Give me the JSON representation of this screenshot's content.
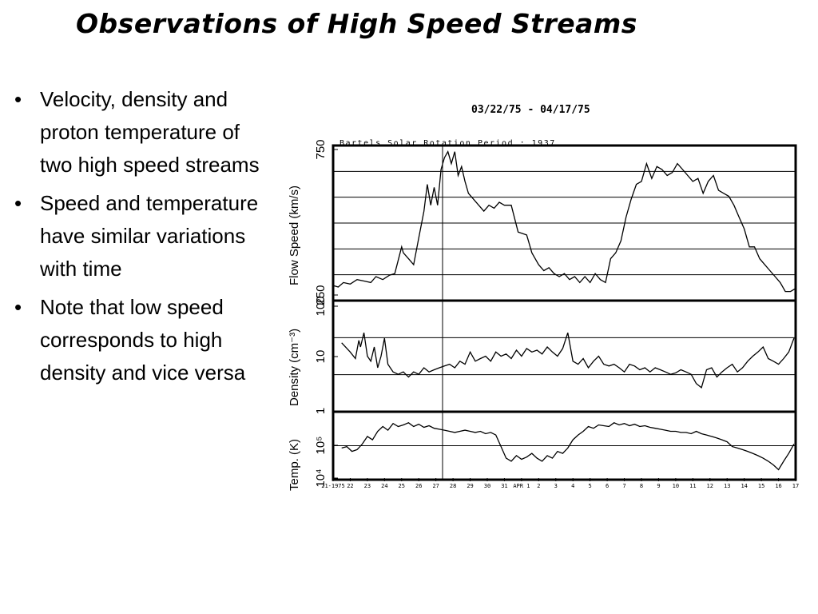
{
  "slide": {
    "title": "Observations of High Speed Streams",
    "bullets": [
      "Velocity, density and proton temperature of two high speed streams",
      "Speed and temperature have similar variations with time",
      "Note that low speed corresponds to high density and vice versa"
    ]
  },
  "chart_data": {
    "type": "line",
    "title": "03/22/75 - 04/17/75",
    "subtitle": "Bartels Solar Rotation Period : 1937",
    "x_tick_labels": [
      "21-1975",
      "22",
      "23",
      "24",
      "25",
      "26",
      "27",
      "28",
      "29",
      "30",
      "31",
      "APR 1",
      "2",
      "3",
      "4",
      "5",
      "6",
      "7",
      "8",
      "9",
      "10",
      "11",
      "12",
      "13",
      "14",
      "15",
      "16",
      "17"
    ],
    "xlim": [
      21,
      48
    ],
    "panels": [
      {
        "name": "speed",
        "ylabel": "Flow Speed (km/s)",
        "scale": "linear",
        "ylim": [
          250,
          750
        ],
        "ytick_labels": [
          "250",
          "750"
        ],
        "series": [
          {
            "x": [
              21.0,
              21.3,
              21.6,
              22.0,
              22.4,
              22.8,
              23.2,
              23.5,
              23.9,
              24.3,
              24.6,
              25.0,
              25.1,
              25.4,
              25.7,
              26.0,
              26.3,
              26.5,
              26.7,
              26.9,
              27.1,
              27.3,
              27.5,
              27.7,
              27.9,
              28.1,
              28.3,
              28.5,
              28.7,
              28.9,
              29.2,
              29.5,
              29.8,
              30.1,
              30.4,
              30.7,
              31.0,
              31.4,
              31.8,
              32.3,
              32.4,
              32.6,
              32.8,
              33.0,
              33.3,
              33.6,
              33.9,
              34.2,
              34.5,
              34.8,
              35.1,
              35.4,
              35.7,
              36.0,
              36.3,
              36.6,
              36.9,
              37.2,
              37.5,
              37.8,
              38.1,
              38.4,
              38.7,
              39.0,
              39.3,
              39.6,
              39.9,
              40.2,
              40.5,
              40.8,
              41.1,
              41.4,
              41.7,
              42.0,
              42.3,
              42.6,
              42.9,
              43.2,
              43.5,
              43.8,
              44.1,
              44.4,
              44.7,
              45.0,
              45.3,
              45.6,
              45.9,
              46.2,
              46.5,
              46.8,
              47.1,
              47.4,
              47.7,
              48.0
            ],
            "y": [
              290,
              285,
              300,
              295,
              310,
              305,
              300,
              320,
              310,
              325,
              330,
              420,
              400,
              380,
              360,
              450,
              540,
              630,
              560,
              620,
              560,
              680,
              720,
              740,
              700,
              740,
              660,
              690,
              640,
              600,
              580,
              560,
              540,
              560,
              550,
              570,
              560,
              560,
              470,
              460,
              440,
              400,
              380,
              360,
              340,
              350,
              330,
              320,
              330,
              310,
              320,
              300,
              320,
              300,
              330,
              310,
              300,
              380,
              400,
              440,
              520,
              580,
              630,
              640,
              700,
              650,
              690,
              680,
              660,
              670,
              700,
              680,
              660,
              640,
              650,
              600,
              640,
              660,
              610,
              600,
              590,
              560,
              520,
              480,
              420,
              420,
              380,
              360,
              340,
              320,
              300,
              270,
              270,
              280
            ]
          }
        ]
      },
      {
        "name": "density",
        "ylabel": "Density (cm⁻³)",
        "scale": "log",
        "ylim": [
          1,
          100
        ],
        "ytick_labels": [
          "1",
          "10",
          "100"
        ],
        "series": [
          {
            "x": [
              21.5,
              22.0,
              22.3,
              22.5,
              22.6,
              22.8,
              23.0,
              23.2,
              23.4,
              23.6,
              23.8,
              24.0,
              24.2,
              24.5,
              24.8,
              25.1,
              25.4,
              25.7,
              26.0,
              26.3,
              26.6,
              26.9,
              27.2,
              27.5,
              27.8,
              28.1,
              28.4,
              28.7,
              29.0,
              29.3,
              29.6,
              29.9,
              30.2,
              30.5,
              30.8,
              31.1,
              31.4,
              31.7,
              32.0,
              32.3,
              32.6,
              32.9,
              33.2,
              33.5,
              33.8,
              34.1,
              34.4,
              34.7,
              35.0,
              35.3,
              35.6,
              35.9,
              36.2,
              36.5,
              36.8,
              37.1,
              37.4,
              37.7,
              38.0,
              38.3,
              38.6,
              38.9,
              39.2,
              39.5,
              39.8,
              40.1,
              40.4,
              40.7,
              41.0,
              41.3,
              41.6,
              41.9,
              42.2,
              42.5,
              42.8,
              43.1,
              43.4,
              43.7,
              44.0,
              44.3,
              44.6,
              44.9,
              45.2,
              45.5,
              45.8,
              46.1,
              46.4,
              46.7,
              47.0,
              47.3,
              47.6,
              47.9
            ],
            "y": [
              18,
              12,
              9,
              20,
              15,
              28,
              10,
              8,
              15,
              6,
              10,
              22,
              7,
              5,
              4.5,
              5,
              4,
              5,
              4.5,
              6,
              5,
              5.5,
              6,
              6.5,
              7,
              6,
              8,
              7,
              12,
              8,
              9,
              10,
              8,
              12,
              10,
              11,
              9,
              13,
              10,
              14,
              12,
              13,
              11,
              15,
              12,
              10,
              14,
              28,
              8,
              7,
              9,
              6,
              8,
              10,
              7,
              6.5,
              7,
              6,
              5,
              7,
              6.5,
              5.5,
              6,
              5,
              6,
              5.5,
              5,
              4.5,
              4.8,
              5.5,
              5,
              4.5,
              3,
              2.5,
              5.5,
              6,
              4,
              5,
              6,
              7,
              5,
              6,
              8,
              10,
              12,
              15,
              9,
              8,
              7,
              9,
              12,
              22
            ]
          }
        ]
      },
      {
        "name": "temperature",
        "ylabel": "Temp. (K)",
        "scale": "log",
        "ylim": [
          10000,
          400000
        ],
        "ytick_labels": [
          "10⁴",
          "10⁵"
        ],
        "series": [
          {
            "x": [
              21.5,
              21.8,
              22.1,
              22.4,
              22.7,
              23.0,
              23.3,
              23.6,
              23.9,
              24.2,
              24.5,
              24.8,
              25.1,
              25.4,
              25.7,
              26.0,
              26.3,
              26.6,
              26.9,
              27.2,
              27.5,
              27.8,
              28.1,
              28.4,
              28.7,
              29.0,
              29.3,
              29.6,
              29.9,
              30.2,
              30.5,
              30.8,
              31.1,
              31.4,
              31.7,
              32.0,
              32.3,
              32.6,
              32.9,
              33.2,
              33.5,
              33.8,
              34.1,
              34.4,
              34.7,
              35.0,
              35.3,
              35.6,
              35.9,
              36.2,
              36.5,
              36.8,
              37.1,
              37.4,
              37.7,
              38.0,
              38.3,
              38.6,
              38.9,
              39.2,
              39.5,
              39.8,
              40.1,
              40.4,
              40.7,
              41.0,
              41.3,
              41.6,
              41.9,
              42.2,
              42.5,
              42.8,
              43.1,
              43.4,
              43.7,
              44.0,
              44.3,
              44.6,
              44.9,
              45.2,
              45.5,
              45.8,
              46.1,
              46.4,
              46.7,
              47.0,
              47.3,
              47.6,
              47.9
            ],
            "y": [
              55000,
              60000,
              45000,
              50000,
              70000,
              110000,
              90000,
              150000,
              200000,
              160000,
              240000,
              200000,
              220000,
              250000,
              200000,
              230000,
              190000,
              210000,
              180000,
              170000,
              160000,
              150000,
              140000,
              150000,
              160000,
              150000,
              140000,
              150000,
              130000,
              140000,
              120000,
              60000,
              30000,
              25000,
              35000,
              28000,
              32000,
              40000,
              30000,
              25000,
              35000,
              30000,
              45000,
              40000,
              55000,
              90000,
              120000,
              150000,
              200000,
              180000,
              220000,
              210000,
              200000,
              250000,
              220000,
              240000,
              210000,
              230000,
              200000,
              210000,
              190000,
              180000,
              170000,
              160000,
              150000,
              150000,
              140000,
              140000,
              130000,
              150000,
              130000,
              120000,
              110000,
              100000,
              90000,
              80000,
              60000,
              55000,
              50000,
              45000,
              40000,
              35000,
              30000,
              25000,
              20000,
              15000,
              25000,
              40000,
              70000
            ]
          }
        ]
      }
    ]
  }
}
